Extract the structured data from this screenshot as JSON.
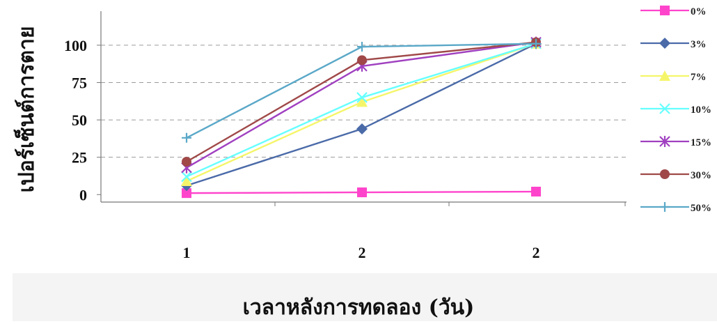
{
  "chart_data": {
    "type": "line",
    "categories": [
      "1",
      "2",
      "2"
    ],
    "ylabel": "เปอร์เซ็นต์การตาย",
    "xlabel": "เวลาหลังการทดลอง (วัน)",
    "yticks": [
      0,
      25,
      50,
      75,
      100
    ],
    "ylim": [
      -5,
      120
    ],
    "grid": "horizontal dashed",
    "legend_position": "right",
    "series": [
      {
        "name": "0%",
        "values": [
          1,
          1.5,
          2
        ],
        "color": "#ff44cc",
        "marker": "square"
      },
      {
        "name": "3%",
        "values": [
          6,
          44,
          101
        ],
        "color": "#4a6aa8",
        "marker": "diamond"
      },
      {
        "name": "7%",
        "values": [
          9,
          62,
          101
        ],
        "color": "#f5f56a",
        "marker": "triangle"
      },
      {
        "name": "10%",
        "values": [
          12,
          65,
          101
        ],
        "color": "#66ffff",
        "marker": "x"
      },
      {
        "name": "15%",
        "values": [
          18,
          86,
          102
        ],
        "color": "#a040c0",
        "marker": "asterisk"
      },
      {
        "name": "30%",
        "values": [
          22,
          90,
          102
        ],
        "color": "#a04848",
        "marker": "circle"
      },
      {
        "name": "50%",
        "values": [
          38,
          99,
          101
        ],
        "color": "#5aa8c8",
        "marker": "plus"
      }
    ]
  }
}
